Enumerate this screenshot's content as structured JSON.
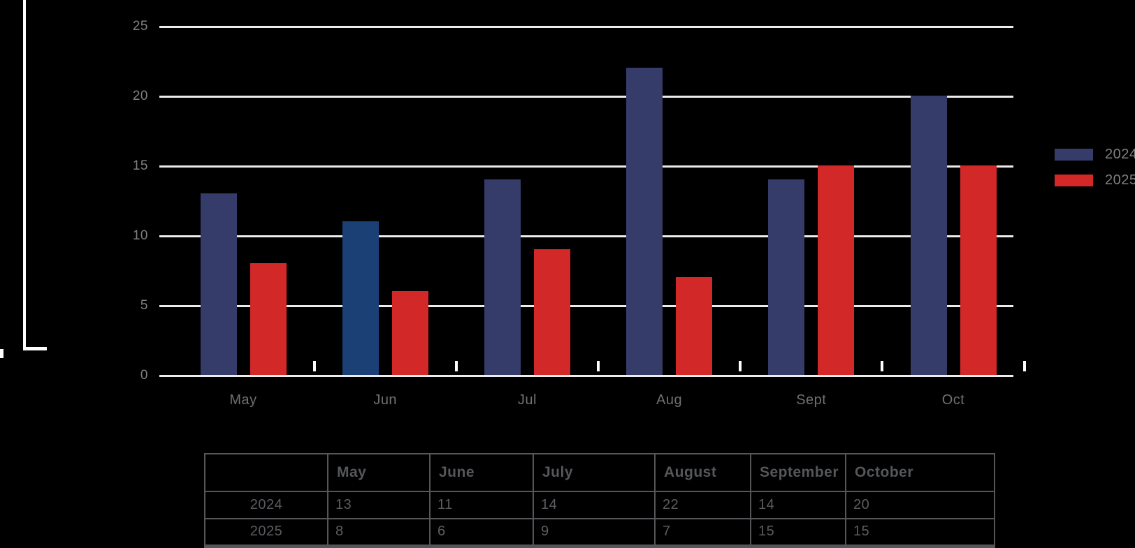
{
  "chart_data": {
    "type": "bar",
    "categories": [
      "May",
      "Jun",
      "Jul",
      "Aug",
      "Sept",
      "Oct"
    ],
    "series": [
      {
        "name": "2024",
        "color": "#353c69",
        "values": [
          13,
          11,
          14,
          22,
          14,
          20
        ]
      },
      {
        "name": "2025",
        "color": "#d22828",
        "values": [
          8,
          6,
          9,
          7,
          15,
          15
        ]
      }
    ],
    "highlight": {
      "series": "2024",
      "category": "Jun",
      "color": "#1b4075"
    },
    "title": "",
    "xlabel": "",
    "ylabel": "",
    "ylim": [
      0,
      25
    ],
    "y_ticks": [
      0,
      5,
      10,
      15,
      20,
      25
    ],
    "grid": "horizontal",
    "legend_position": "right"
  },
  "legend": {
    "items": [
      {
        "label": "2024",
        "color": "#353c69"
      },
      {
        "label": "2025",
        "color": "#d22828"
      }
    ]
  },
  "table": {
    "columns": [
      "",
      "May",
      "June",
      "July",
      "August",
      "September",
      "October"
    ],
    "rows": [
      {
        "label": "2024",
        "values": [
          "13",
          "11",
          "14",
          "22",
          "14",
          "20"
        ]
      },
      {
        "label": "2025",
        "values": [
          "8",
          "6",
          "9",
          "7",
          "15",
          "15"
        ]
      }
    ]
  },
  "colors": {
    "background": "#000000",
    "gridline": "#ececee",
    "axis_text": "#7e8083",
    "month_text": "#707175",
    "table_text": "#55575b",
    "table_border": "#54565a",
    "frame": "#ffffff"
  }
}
